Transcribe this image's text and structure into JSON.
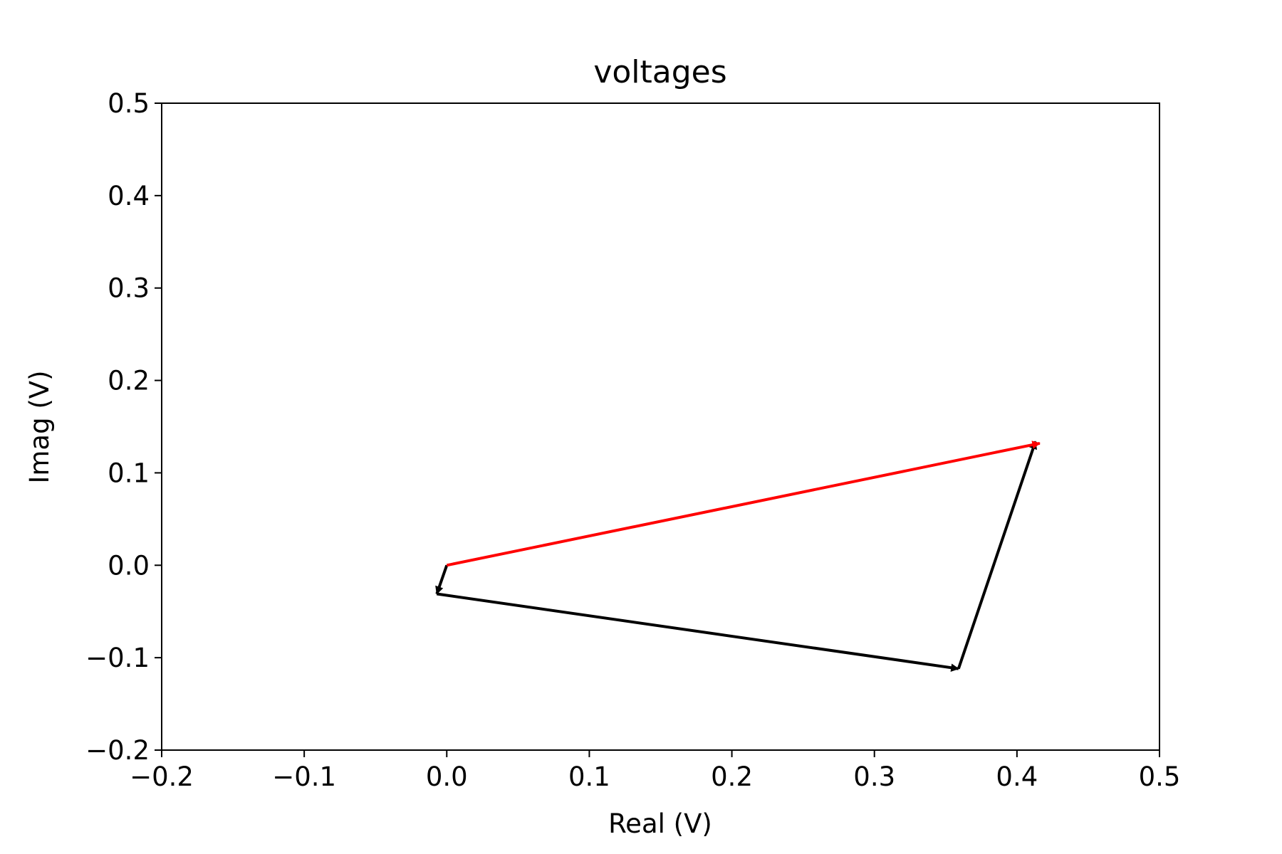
{
  "chart_data": {
    "type": "line",
    "title": "voltages",
    "xlabel": "Real (V)",
    "ylabel": "Imag (V)",
    "xlim": [
      -0.2,
      0.5
    ],
    "ylim": [
      -0.2,
      0.5
    ],
    "x_ticks": [
      -0.2,
      -0.1,
      0.0,
      0.1,
      0.2,
      0.3,
      0.4,
      0.5
    ],
    "x_tick_labels": [
      "−0.2",
      "−0.1",
      "0.0",
      "0.1",
      "0.2",
      "0.3",
      "0.4",
      "0.5"
    ],
    "y_ticks": [
      -0.2,
      -0.1,
      0.0,
      0.1,
      0.2,
      0.3,
      0.4,
      0.5
    ],
    "y_tick_labels": [
      "−0.2",
      "−0.1",
      "0.0",
      "0.1",
      "0.2",
      "0.3",
      "0.4",
      "0.5"
    ],
    "grid": false,
    "series": [
      {
        "color": "#000000",
        "points": [
          [
            0.0,
            0.0
          ],
          [
            -0.007,
            -0.031
          ]
        ]
      },
      {
        "color": "#000000",
        "points": [
          [
            -0.007,
            -0.031
          ],
          [
            0.359,
            -0.112
          ]
        ]
      },
      {
        "color": "#000000",
        "points": [
          [
            0.359,
            -0.112
          ],
          [
            0.413,
            0.134
          ]
        ]
      },
      {
        "color": "#ff0000",
        "points": [
          [
            0.0,
            0.0
          ],
          [
            0.416,
            0.132
          ]
        ]
      }
    ]
  }
}
